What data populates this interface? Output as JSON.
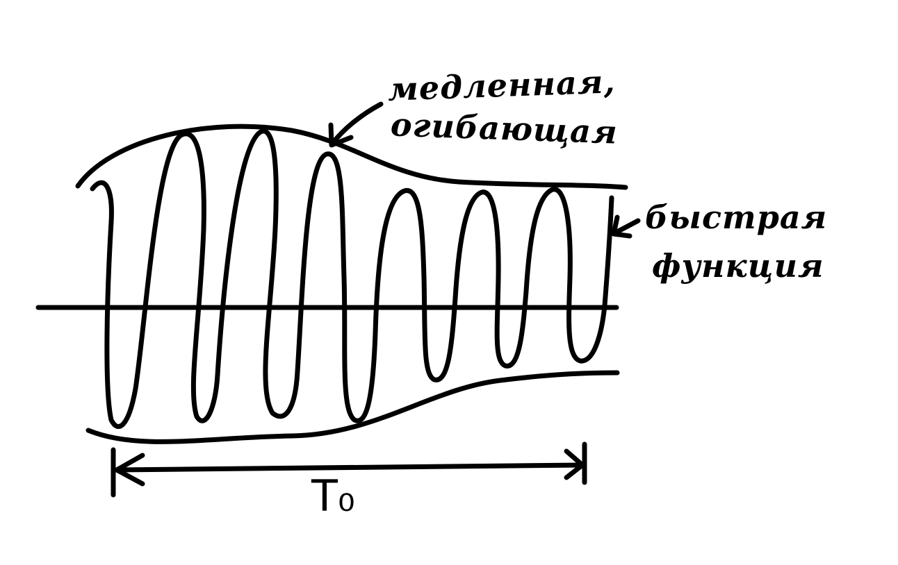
{
  "diagram": {
    "labels": {
      "envelope_line1": "медленная,",
      "envelope_line2": "огибающая",
      "fast_line1": "быстрая",
      "fast_line2": "функция",
      "period": "T₀"
    },
    "colors": {
      "ink": "#000000",
      "background": "#ffffff"
    }
  }
}
